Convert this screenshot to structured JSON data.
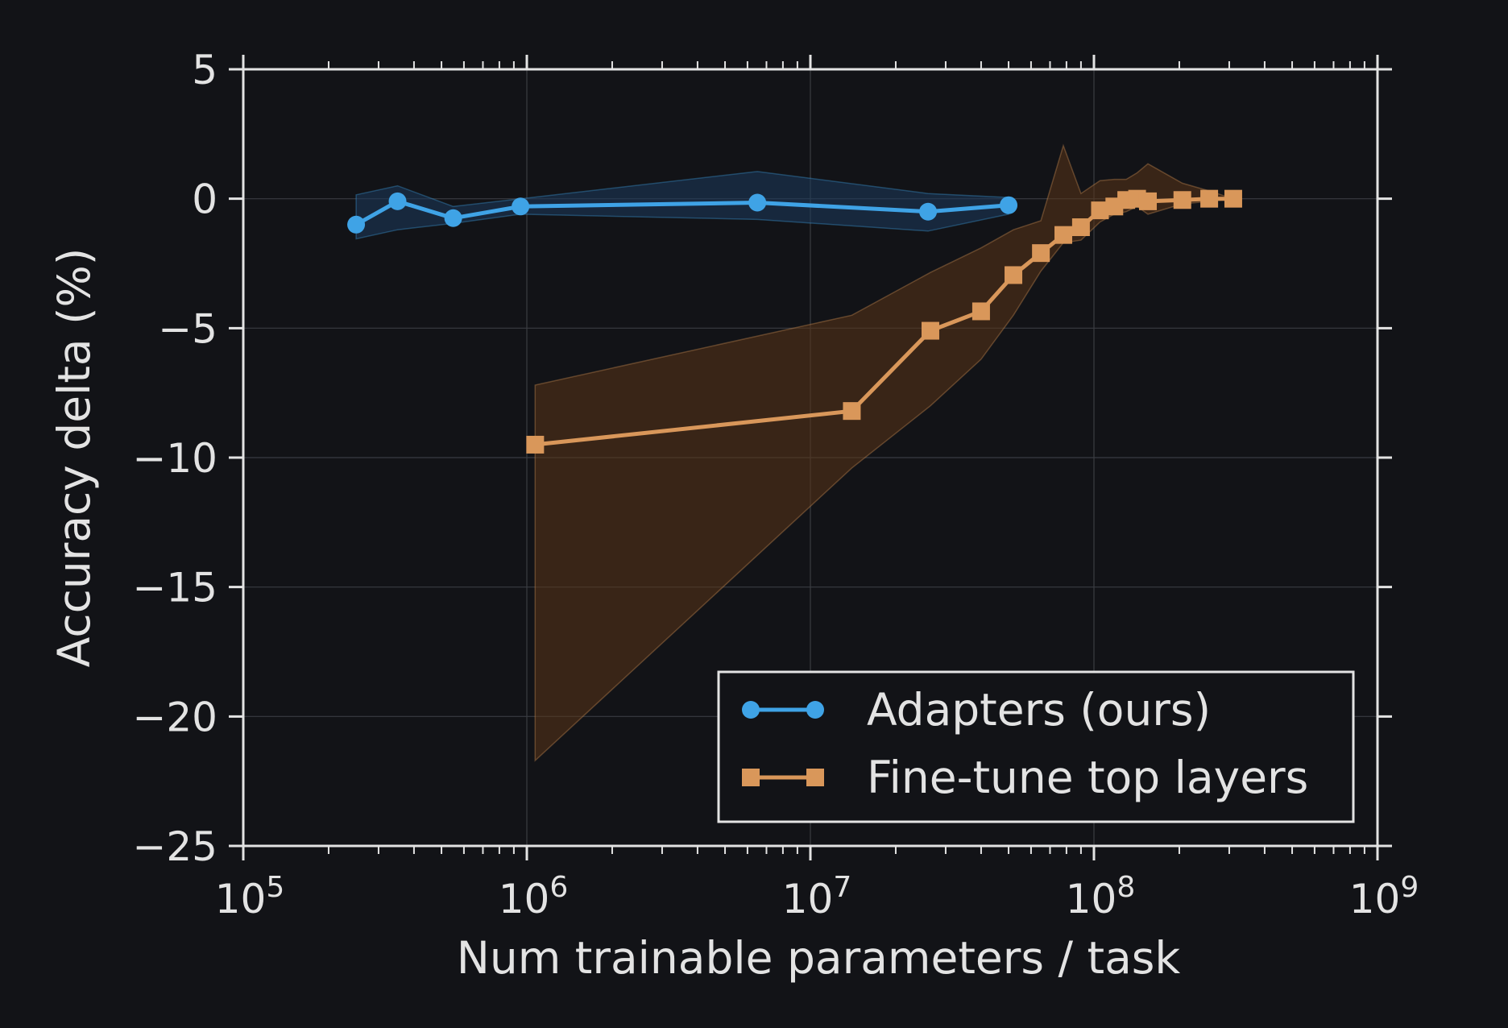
{
  "chart_data": {
    "type": "line",
    "xlabel": "Num trainable parameters / task",
    "ylabel": "Accuracy delta (%)",
    "xscale": "log",
    "xlim": [
      100000,
      1000000000
    ],
    "ylim": [
      -25,
      5
    ],
    "x_ticks": [
      100000,
      1000000,
      10000000,
      100000000,
      1000000000
    ],
    "x_tick_labels": [
      "10^5",
      "10^6",
      "10^7",
      "10^8",
      "10^9"
    ],
    "y_ticks": [
      5,
      0,
      -5,
      -10,
      -15,
      -20,
      -25
    ],
    "y_tick_labels": [
      "5",
      "0",
      "−5",
      "−10",
      "−15",
      "−20",
      "−25"
    ],
    "grid": true,
    "legend_position": "lower right",
    "series": [
      {
        "name": "Adapters (ours)",
        "marker": "circle",
        "color": "#3fa3e6",
        "band_color": "#1b3a5c",
        "x": [
          250000,
          350000,
          550000,
          950000,
          6500000,
          26000000,
          50000000
        ],
        "y": [
          -1.0,
          -0.1,
          -0.75,
          -0.3,
          -0.15,
          -0.5,
          -0.25
        ],
        "lower": [
          -1.55,
          -1.2,
          -0.95,
          -0.6,
          -0.8,
          -1.25,
          -0.6
        ],
        "upper": [
          0.15,
          0.5,
          -0.3,
          0.0,
          1.05,
          0.2,
          0.05
        ]
      },
      {
        "name": "Fine-tune top layers",
        "marker": "square",
        "color": "#d9975a",
        "band_color": "#5a3518",
        "x": [
          1070000,
          14000000,
          26500000,
          40000000,
          52000000,
          65000000,
          78000000,
          90000000,
          105000000,
          118000000,
          130000000,
          142000000,
          155000000,
          205000000,
          255000000,
          310000000
        ],
        "y": [
          -9.5,
          -8.2,
          -5.1,
          -4.35,
          -2.95,
          -2.1,
          -1.4,
          -1.1,
          -0.45,
          -0.3,
          -0.05,
          0.0,
          -0.1,
          -0.05,
          0.0,
          0.0
        ],
        "lower": [
          -21.7,
          -10.4,
          -8.0,
          -6.2,
          -4.5,
          -2.8,
          -1.7,
          -1.6,
          -0.9,
          -0.6,
          -0.5,
          -0.3,
          -0.6,
          -0.2,
          -0.1,
          0.0
        ],
        "upper": [
          -7.2,
          -4.5,
          -2.85,
          -1.9,
          -1.2,
          -0.85,
          2.05,
          0.2,
          0.7,
          0.75,
          0.75,
          1.0,
          1.35,
          0.6,
          0.3,
          0.0
        ]
      }
    ]
  }
}
